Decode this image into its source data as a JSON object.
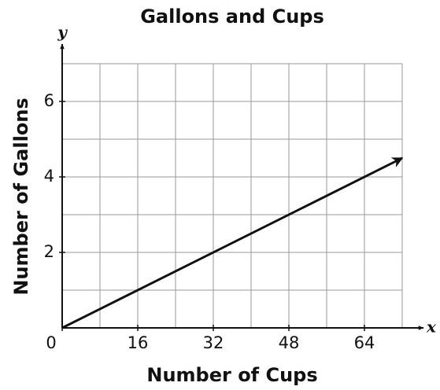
{
  "chart_data": {
    "type": "line",
    "title": "Gallons and Cups",
    "x_label": "Number of Cups",
    "y_label": "Number of Gallons",
    "x_var": "x",
    "y_var": "y",
    "x": [
      0,
      72
    ],
    "series": [
      {
        "color": "#111111",
        "values": [
          0,
          4.5
        ]
      }
    ],
    "xlim": [
      0,
      72
    ],
    "ylim": [
      0,
      7
    ],
    "xticks": [
      0,
      16,
      32,
      48,
      64
    ],
    "yticks": [
      2,
      4,
      6
    ],
    "xgrid": [
      8,
      16,
      24,
      32,
      40,
      48,
      56,
      64,
      72
    ],
    "ygrid": [
      1,
      2,
      3,
      4,
      5,
      6,
      7
    ],
    "grid": true
  }
}
